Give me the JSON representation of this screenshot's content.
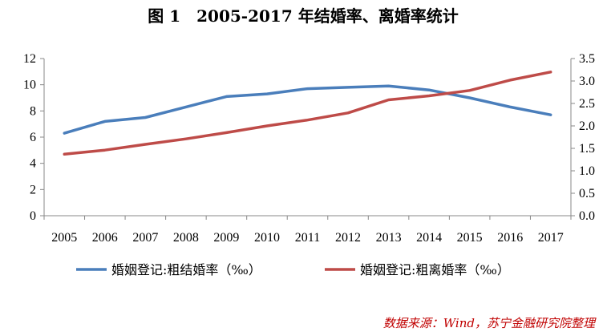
{
  "figure": {
    "title": "图 1　2005-2017 年结婚率、离婚率统计",
    "source": "数据来源：Wind，苏宁金融研究院整理"
  },
  "colors": {
    "marriage": "#4a7ebb",
    "divorce": "#be4b48",
    "axis": "#888888",
    "source_text": "#c00000"
  },
  "chart_data": {
    "type": "line",
    "title": "图 1　2005-2017 年结婚率、离婚率统计",
    "xlabel": "",
    "ylabel": "",
    "y2label": "",
    "categories": [
      "2005",
      "2006",
      "2007",
      "2008",
      "2009",
      "2010",
      "2011",
      "2012",
      "2013",
      "2014",
      "2015",
      "2016",
      "2017"
    ],
    "ylim": [
      0,
      12
    ],
    "y2lim": [
      0,
      3.5
    ],
    "y_ticks": [
      "0",
      "2",
      "4",
      "6",
      "8",
      "10",
      "12"
    ],
    "y2_ticks": [
      "0.0",
      "0.5",
      "1.0",
      "1.5",
      "2.0",
      "2.5",
      "3.0",
      "3.5"
    ],
    "grid": false,
    "legend_position": "bottom",
    "series": [
      {
        "name": "婚姻登记:粗结婚率（‰）",
        "axis": "left",
        "color": "#4a7ebb",
        "values": [
          6.3,
          7.2,
          7.5,
          8.3,
          9.1,
          9.3,
          9.7,
          9.8,
          9.9,
          9.6,
          9.0,
          8.3,
          7.7
        ]
      },
      {
        "name": "婚姻登记:粗离婚率（‰）",
        "axis": "right",
        "color": "#be4b48",
        "values": [
          1.37,
          1.46,
          1.59,
          1.71,
          1.85,
          2.0,
          2.13,
          2.29,
          2.58,
          2.67,
          2.79,
          3.02,
          3.2
        ]
      }
    ]
  }
}
